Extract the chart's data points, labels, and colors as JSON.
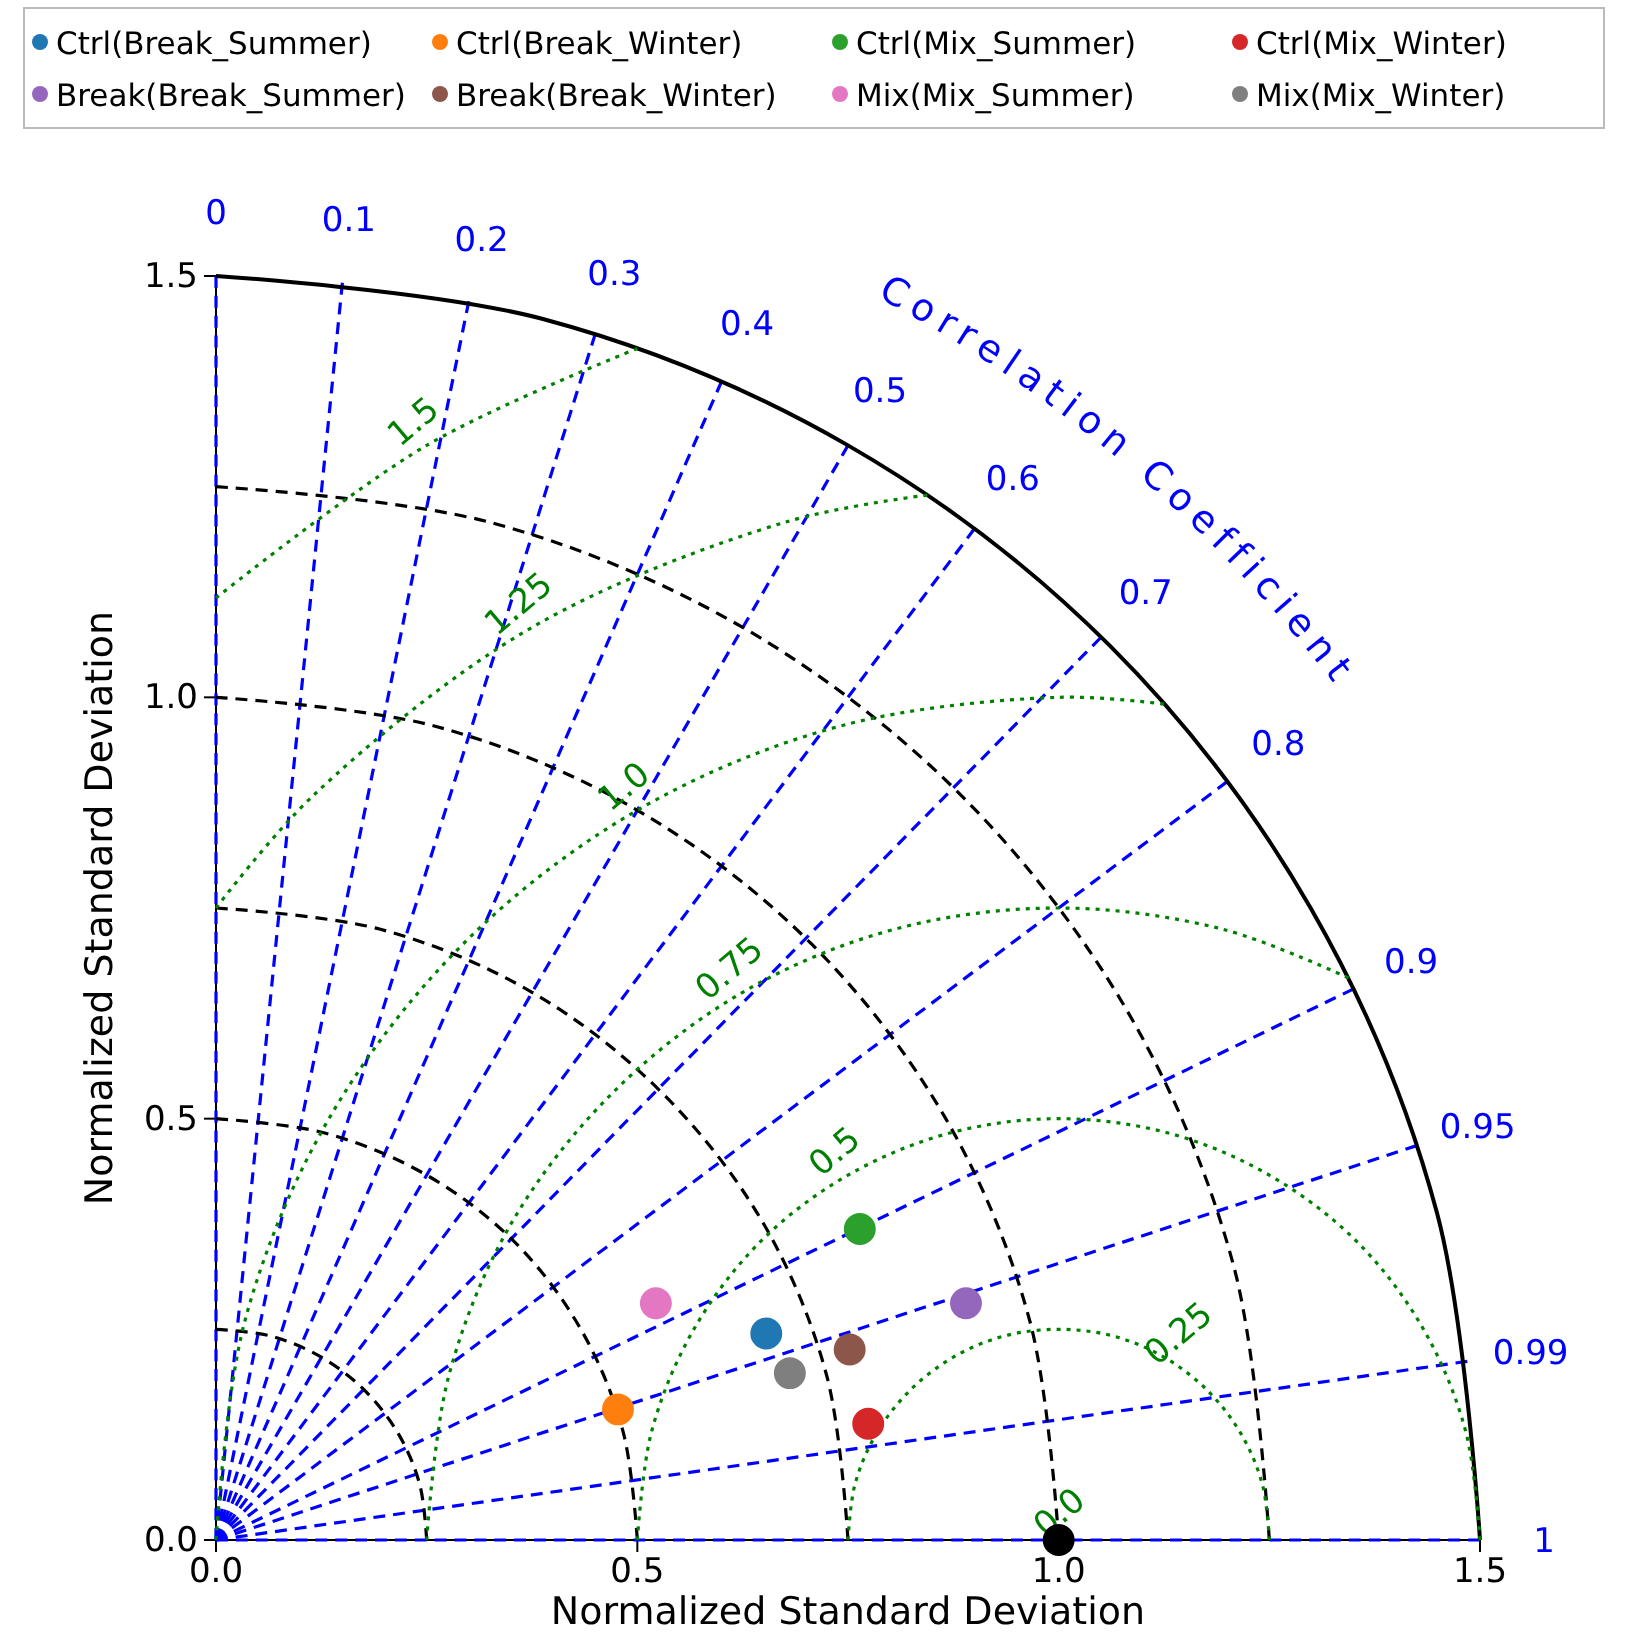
{
  "chart_data": {
    "type": "scatter",
    "xlabel": "Normalized Standard Deviation",
    "ylabel": "Normalized Standard Deviation",
    "xlim": [
      0,
      1.5
    ],
    "ylim": [
      0,
      1.5
    ],
    "xticks": [
      {
        "value": 0,
        "label": "0.0"
      },
      {
        "value": 0.5,
        "label": "0.5"
      },
      {
        "value": 1,
        "label": "1.0"
      },
      {
        "value": 1.5,
        "label": "1.5"
      }
    ],
    "yticks": [
      {
        "value": 0,
        "label": "0.0"
      },
      {
        "value": 0.5,
        "label": "0.5"
      },
      {
        "value": 1,
        "label": "1.0"
      },
      {
        "value": 1.5,
        "label": "1.5"
      }
    ],
    "legend": "top",
    "marker": "circle",
    "series": [
      {
        "type": "line",
        "color": "#0000ff",
        "line_style": "dashed",
        "marker": "none",
        "x": [
          0,
          0
        ],
        "values": [
          0,
          1.5
        ]
      },
      {
        "type": "line",
        "color": "#0000ff",
        "line_style": "dashed",
        "marker": "none",
        "x": [
          0,
          0.15
        ],
        "values": [
          0,
          1.492
        ]
      },
      {
        "type": "line",
        "color": "#0000ff",
        "line_style": "dashed",
        "marker": "none",
        "x": [
          0,
          0.3
        ],
        "values": [
          0,
          1.47
        ]
      },
      {
        "type": "line",
        "color": "#0000ff",
        "line_style": "dashed",
        "marker": "none",
        "x": [
          0,
          0.45
        ],
        "values": [
          0,
          1.431
        ]
      },
      {
        "type": "line",
        "color": "#0000ff",
        "line_style": "dashed",
        "marker": "none",
        "x": [
          0,
          0.6
        ],
        "values": [
          0,
          1.375
        ]
      },
      {
        "type": "line",
        "color": "#0000ff",
        "line_style": "dashed",
        "marker": "none",
        "x": [
          0,
          0.75
        ],
        "values": [
          0,
          1.299
        ]
      },
      {
        "type": "line",
        "color": "#0000ff",
        "line_style": "dashed",
        "marker": "none",
        "x": [
          0,
          0.9
        ],
        "values": [
          0,
          1.2
        ]
      },
      {
        "type": "line",
        "color": "#0000ff",
        "line_style": "dashed",
        "marker": "none",
        "x": [
          0,
          1.05
        ],
        "values": [
          0,
          1.071
        ]
      },
      {
        "type": "line",
        "color": "#0000ff",
        "line_style": "dashed",
        "marker": "none",
        "x": [
          0,
          1.2
        ],
        "values": [
          0,
          0.9
        ]
      },
      {
        "type": "line",
        "color": "#0000ff",
        "line_style": "dashed",
        "marker": "none",
        "x": [
          0,
          1.35
        ],
        "values": [
          0,
          0.654
        ]
      },
      {
        "type": "line",
        "color": "#0000ff",
        "line_style": "dashed",
        "marker": "none",
        "x": [
          0,
          1.425
        ],
        "values": [
          0,
          0.468
        ]
      },
      {
        "type": "line",
        "color": "#0000ff",
        "line_style": "dashed",
        "marker": "none",
        "x": [
          0,
          1.485
        ],
        "values": [
          0,
          0.212
        ]
      },
      {
        "type": "line",
        "color": "#0000ff",
        "line_style": "dashed",
        "marker": "none",
        "x": [
          0,
          1.5
        ],
        "values": [
          0,
          0
        ]
      },
      {
        "type": "line",
        "color": "#000000",
        "line_style": "dashed",
        "marker": "none",
        "x": [
          0.25,
          0.242,
          0.217,
          0.177,
          0.125,
          0.065,
          0
        ],
        "values": [
          0,
          0.065,
          0.125,
          0.177,
          0.217,
          0.242,
          0.25
        ]
      },
      {
        "type": "line",
        "color": "#000000",
        "line_style": "dashed",
        "marker": "none",
        "x": [
          0.5,
          0.483,
          0.433,
          0.354,
          0.25,
          0.129,
          0
        ],
        "values": [
          0,
          0.129,
          0.25,
          0.354,
          0.433,
          0.483,
          0.5
        ]
      },
      {
        "type": "line",
        "color": "#000000",
        "line_style": "dashed",
        "marker": "none",
        "x": [
          0.75,
          0.725,
          0.65,
          0.53,
          0.375,
          0.194,
          0
        ],
        "values": [
          0,
          0.194,
          0.375,
          0.53,
          0.65,
          0.725,
          0.75
        ]
      },
      {
        "type": "line",
        "color": "#000000",
        "line_style": "dashed",
        "marker": "none",
        "x": [
          1,
          0.966,
          0.866,
          0.707,
          0.5,
          0.259,
          0
        ],
        "values": [
          0,
          0.259,
          0.5,
          0.707,
          0.866,
          0.966,
          1
        ]
      },
      {
        "type": "line",
        "color": "#000000",
        "line_style": "dashed",
        "marker": "none",
        "x": [
          1.25,
          1.208,
          1.083,
          0.884,
          0.625,
          0.324,
          0
        ],
        "values": [
          0,
          0.324,
          0.625,
          0.884,
          1.083,
          1.208,
          1.25
        ]
      },
      {
        "type": "line",
        "color": "#000000",
        "line_style": "solid",
        "marker": "none",
        "x": [
          1.5,
          1.449,
          1.299,
          1.061,
          0.75,
          0.388,
          0
        ],
        "values": [
          0,
          0.388,
          0.75,
          1.061,
          1.299,
          1.449,
          1.5
        ]
      },
      {
        "type": "line",
        "color": "#008000",
        "line_style": "dotted",
        "marker": "none",
        "x": [
          1.25,
          1.242,
          1.217,
          1.177,
          1.125,
          1.065,
          1,
          0.935,
          0.875,
          0.823,
          0.783,
          0.758,
          0.75
        ],
        "values": [
          0,
          0.065,
          0.125,
          0.177,
          0.217,
          0.242,
          0.25,
          0.242,
          0.217,
          0.177,
          0.125,
          0.065,
          0
        ]
      },
      {
        "type": "line",
        "color": "#008000",
        "line_style": "dotted",
        "marker": "none",
        "x": [
          1.5,
          1.483,
          1.433,
          1.354,
          1.25,
          1.13,
          1,
          0.871,
          0.75,
          0.646,
          0.567,
          0.517,
          0.5
        ],
        "values": [
          0,
          0.129,
          0.25,
          0.354,
          0.433,
          0.483,
          0.5,
          0.483,
          0.433,
          0.354,
          0.25,
          0.129,
          0
        ]
      },
      {
        "type": "line",
        "color": "#008000",
        "line_style": "dotted",
        "marker": "none",
        "x": [
          1.344,
          1.194,
          1,
          0.806,
          0.625,
          0.47,
          0.35,
          0.276,
          0.25
        ],
        "values": [
          0.667,
          0.725,
          0.75,
          0.725,
          0.65,
          0.53,
          0.375,
          0.194,
          0
        ]
      },
      {
        "type": "line",
        "color": "#008000",
        "line_style": "dotted",
        "marker": "none",
        "x": [
          1.125,
          1,
          0.741,
          0.5,
          0.293,
          0.134,
          0.034,
          0
        ],
        "values": [
          0.992,
          1,
          0.966,
          0.866,
          0.707,
          0.5,
          0.259,
          0
        ]
      },
      {
        "type": "line",
        "color": "#008000",
        "line_style": "dotted",
        "marker": "none",
        "x": [
          0.844,
          0.676,
          0.375,
          0.116,
          0
        ],
        "values": [
          1.24,
          1.208,
          1.083,
          0.884,
          0.75
        ]
      },
      {
        "type": "line",
        "color": "#008000",
        "line_style": "dotted",
        "marker": "none",
        "x": [
          0.5,
          0.25,
          0
        ],
        "values": [
          1.414,
          1.299,
          1.118
        ]
      },
      {
        "name": "Ctrl(Break_Summer)",
        "color": "#1f77b4",
        "x": [
          0.653
        ],
        "values": [
          0.245
        ]
      },
      {
        "name": "Ctrl(Break_Winter)",
        "color": "#ff7f0e",
        "x": [
          0.477
        ],
        "values": [
          0.155
        ]
      },
      {
        "name": "Ctrl(Mix_Summer)",
        "color": "#2ca02c",
        "x": [
          0.764
        ],
        "values": [
          0.369
        ]
      },
      {
        "name": "Ctrl(Mix_Winter)",
        "color": "#d62728",
        "x": [
          0.774
        ],
        "values": [
          0.138
        ]
      },
      {
        "name": "Break(Break_Summer)",
        "color": "#9467bd",
        "x": [
          0.89
        ],
        "values": [
          0.281
        ]
      },
      {
        "name": "Break(Break_Winter)",
        "color": "#8c564b",
        "x": [
          0.752
        ],
        "values": [
          0.226
        ]
      },
      {
        "name": "Mix(Mix_Summer)",
        "color": "#e377c2",
        "x": [
          0.522
        ],
        "values": [
          0.281
        ]
      },
      {
        "name": "Mix(Mix_Winter)",
        "color": "#7f7f7f",
        "x": [
          0.681
        ],
        "values": [
          0.198
        ]
      },
      {
        "color": "#000000",
        "x": [
          1.0
        ],
        "values": [
          0.0
        ]
      }
    ],
    "annotations": [
      "Correlation Coefficient",
      {
        "text": "0",
        "x": 0,
        "y": 1.5
      },
      {
        "text": "0.1",
        "x": 0.15,
        "y": 1.492
      },
      {
        "text": "0.2",
        "x": 0.3,
        "y": 1.47
      },
      {
        "text": "0.3",
        "x": 0.45,
        "y": 1.431
      },
      {
        "text": "0.4",
        "x": 0.6,
        "y": 1.375
      },
      {
        "text": "0.5",
        "x": 0.75,
        "y": 1.299
      },
      {
        "text": "0.6",
        "x": 0.9,
        "y": 1.2
      },
      {
        "text": "0.7",
        "x": 1.05,
        "y": 1.071
      },
      {
        "text": "0.8",
        "x": 1.2,
        "y": 0.9
      },
      {
        "text": "0.9",
        "x": 1.35,
        "y": 0.654
      },
      {
        "text": "0.95",
        "x": 1.425,
        "y": 0.468
      },
      {
        "text": "0.99",
        "x": 1.485,
        "y": 0.212
      },
      {
        "text": "1",
        "x": 1.5,
        "y": 0
      },
      {
        "text": "0.0",
        "x": 1.0,
        "y": 0.0
      },
      {
        "text": "0.25",
        "x": 1.125,
        "y": 0.217
      },
      {
        "text": "0.5",
        "x": 0.75,
        "y": 0.433
      },
      {
        "text": "0.75",
        "x": 0.625,
        "y": 0.65
      },
      {
        "text": "1.0",
        "x": 0.5,
        "y": 0.866
      },
      {
        "text": "1.25",
        "x": 0.375,
        "y": 1.083
      },
      {
        "text": "1.5",
        "x": 0.25,
        "y": 1.299
      }
    ]
  }
}
